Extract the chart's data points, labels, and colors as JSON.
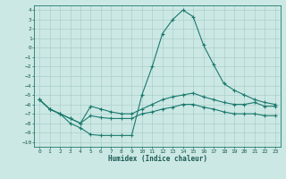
{
  "xlabel": "Humidex (Indice chaleur)",
  "background_color": "#cce8e4",
  "grid_color": "#aacfcb",
  "line_color": "#1a7a6e",
  "xlim": [
    -0.5,
    23.5
  ],
  "ylim": [
    -10.5,
    4.5
  ],
  "xticks": [
    0,
    1,
    2,
    3,
    4,
    5,
    6,
    7,
    8,
    9,
    10,
    11,
    12,
    13,
    14,
    15,
    16,
    17,
    18,
    19,
    20,
    21,
    22,
    23
  ],
  "yticks": [
    4,
    3,
    2,
    1,
    0,
    -1,
    -2,
    -3,
    -4,
    -5,
    -6,
    -7,
    -8,
    -9,
    -10
  ],
  "line1_x": [
    0,
    1,
    2,
    3,
    4,
    5,
    6,
    7,
    8,
    9,
    10,
    11,
    12,
    13,
    14,
    15,
    16,
    17,
    18,
    19,
    20,
    21,
    22,
    23
  ],
  "line1_y": [
    -5.5,
    -6.5,
    -7.0,
    -8.0,
    -8.5,
    -9.2,
    -9.3,
    -9.3,
    -9.3,
    -9.3,
    -5.0,
    -2.0,
    1.5,
    3.0,
    4.0,
    3.3,
    0.3,
    -1.8,
    -3.8,
    -4.5,
    -5.0,
    -5.5,
    -5.8,
    -6.0
  ],
  "line2_x": [
    0,
    1,
    2,
    3,
    4,
    5,
    6,
    7,
    8,
    9,
    10,
    11,
    12,
    13,
    14,
    15,
    16,
    17,
    18,
    19,
    20,
    21,
    22,
    23
  ],
  "line2_y": [
    -5.5,
    -6.5,
    -7.0,
    -7.5,
    -8.0,
    -6.2,
    -6.5,
    -6.8,
    -7.0,
    -7.0,
    -6.5,
    -6.0,
    -5.5,
    -5.2,
    -5.0,
    -4.8,
    -5.2,
    -5.5,
    -5.8,
    -6.0,
    -6.0,
    -5.8,
    -6.2,
    -6.2
  ],
  "line3_x": [
    0,
    1,
    2,
    3,
    4,
    5,
    6,
    7,
    8,
    9,
    10,
    11,
    12,
    13,
    14,
    15,
    16,
    17,
    18,
    19,
    20,
    21,
    22,
    23
  ],
  "line3_y": [
    -5.5,
    -6.5,
    -7.0,
    -7.5,
    -8.0,
    -7.2,
    -7.4,
    -7.5,
    -7.5,
    -7.5,
    -7.0,
    -6.8,
    -6.5,
    -6.3,
    -6.0,
    -6.0,
    -6.3,
    -6.5,
    -6.8,
    -7.0,
    -7.0,
    -7.0,
    -7.2,
    -7.2
  ]
}
